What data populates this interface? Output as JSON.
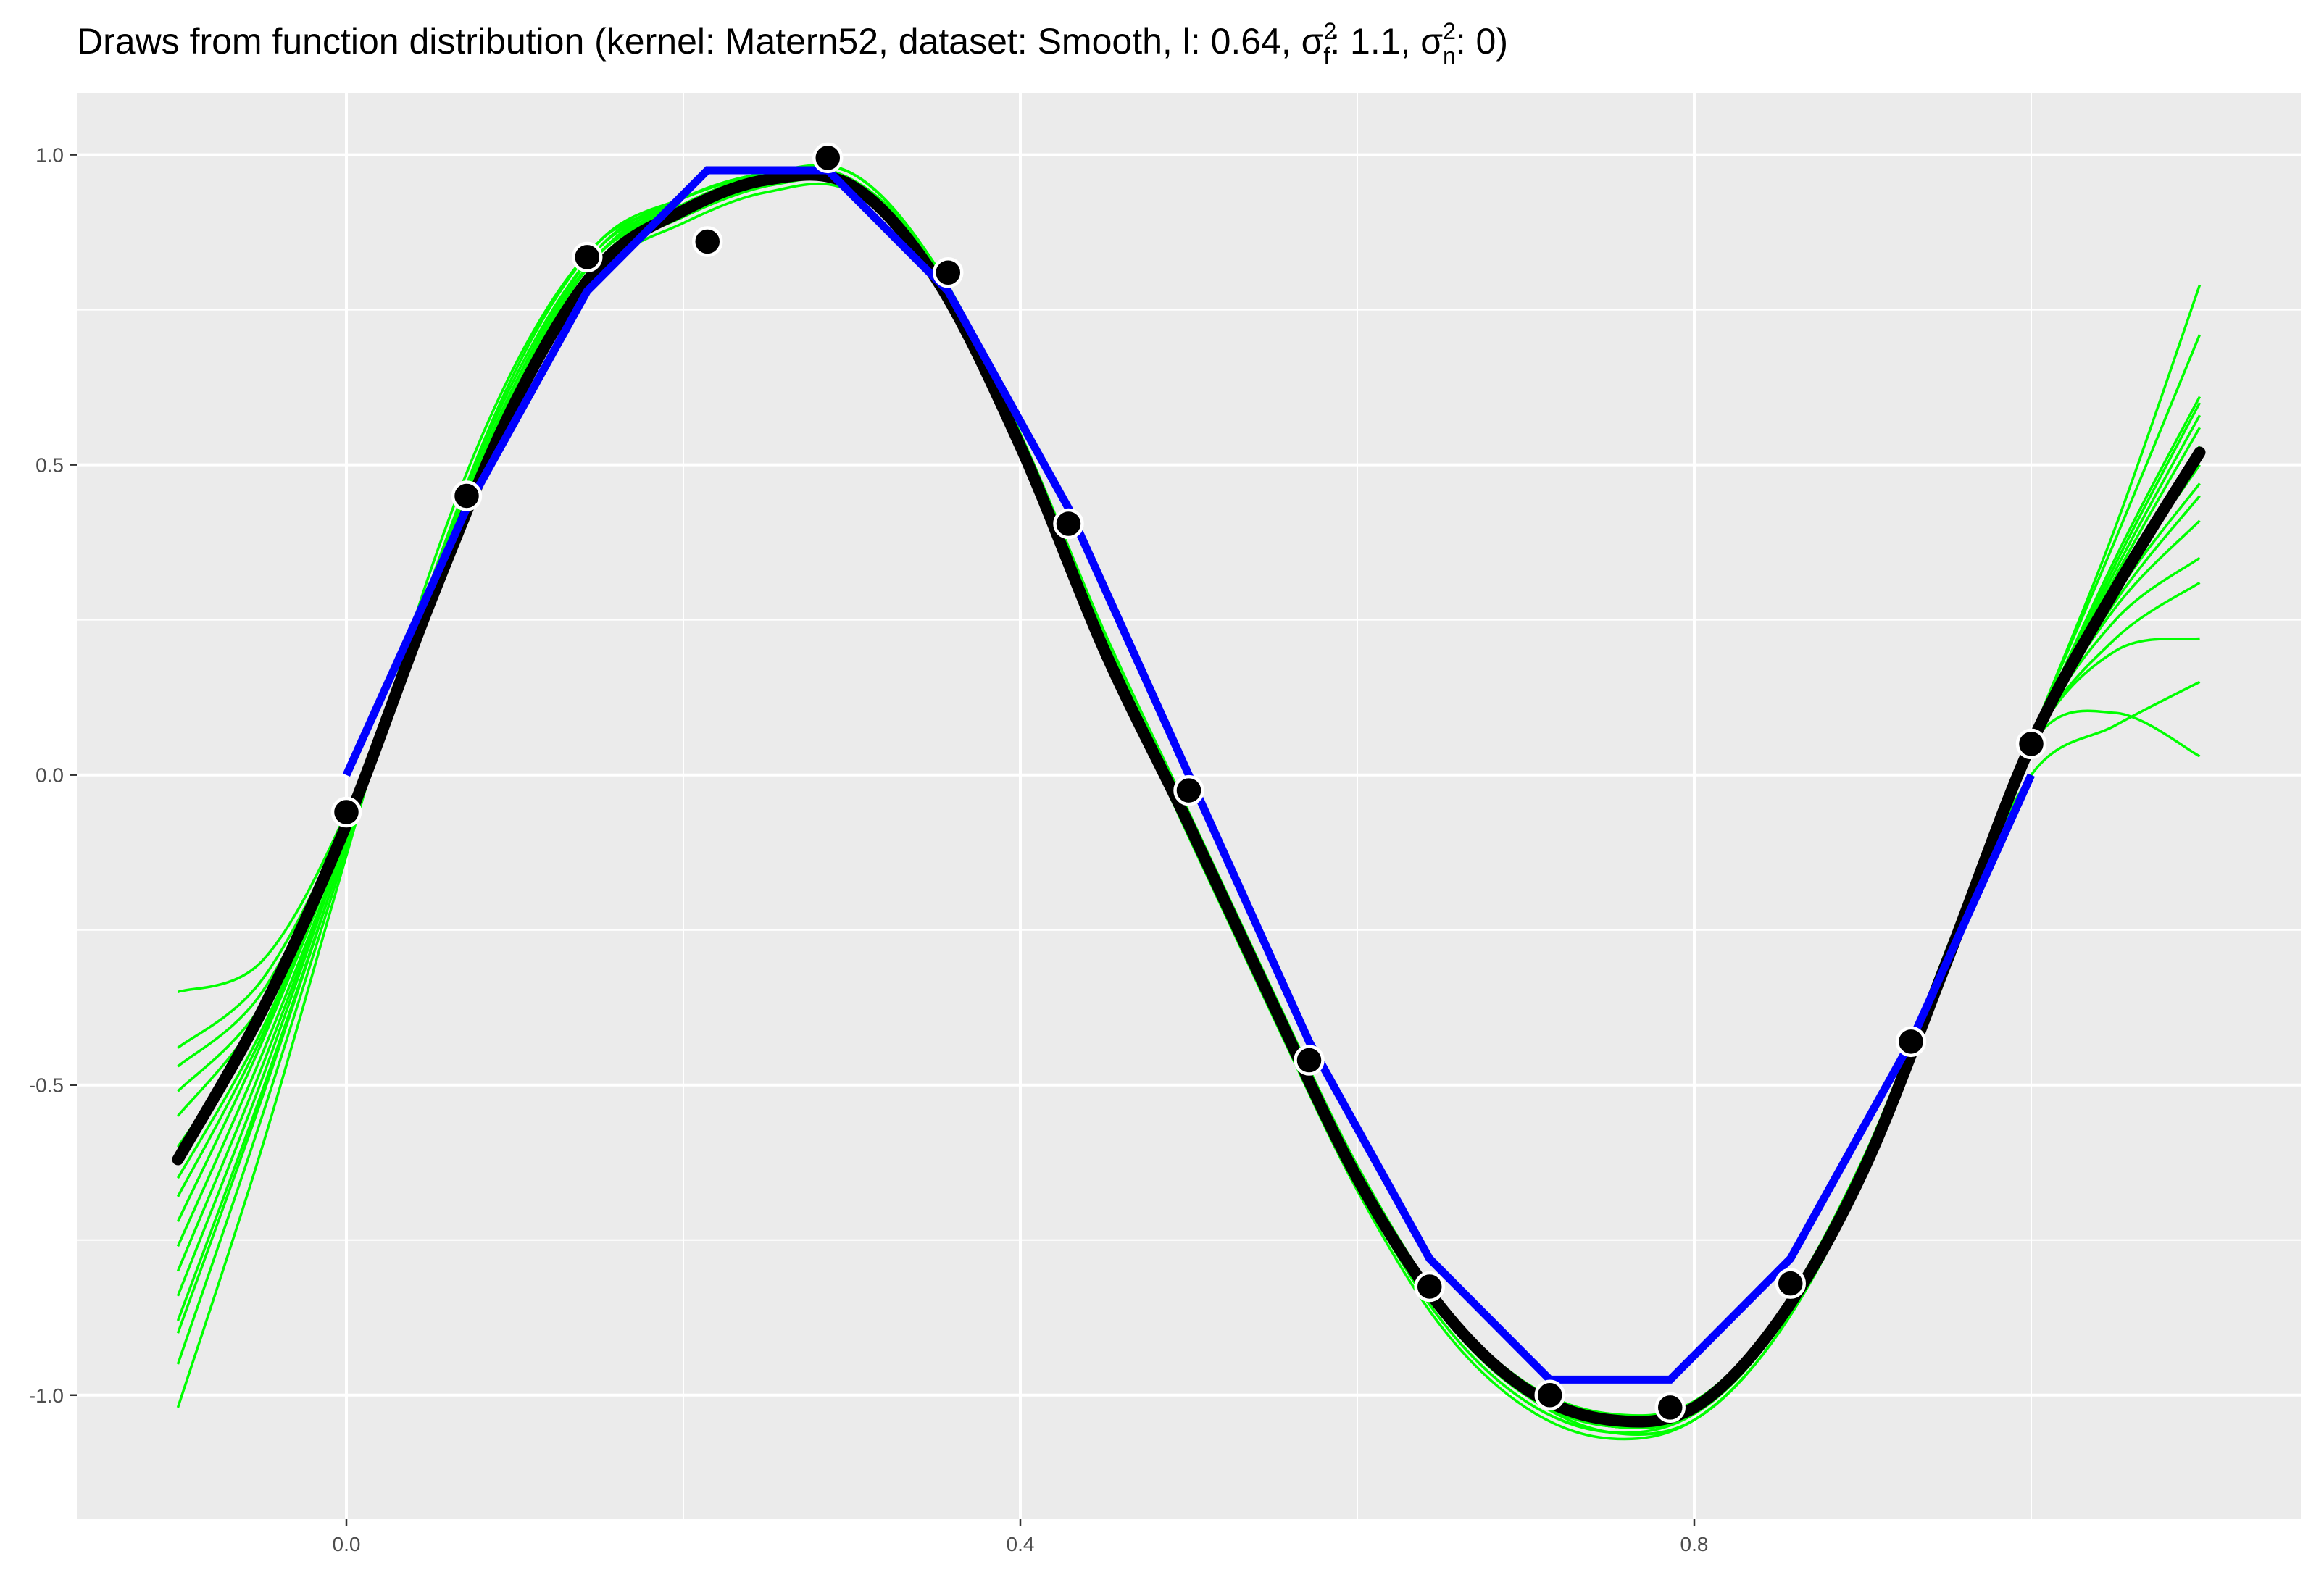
{
  "chart_data": {
    "type": "line",
    "title": {
      "main": "Draws from function distribution (kernel: Matern52, dataset: Smooth, l: 0.64, σ",
      "sup1": "2",
      "sub1": "f",
      "mid": ": 1.1, σ",
      "sup2": "2",
      "sub2": "n",
      "end": ": 0)"
    },
    "xlabel": "",
    "ylabel": "",
    "xlim": [
      -0.16,
      1.16
    ],
    "ylim": [
      -1.2,
      1.1
    ],
    "x_ticks": [
      0.0,
      0.4,
      0.8
    ],
    "x_tick_labels": [
      "0.0",
      "0.4",
      "0.8"
    ],
    "x_minor": [
      -0.2,
      0.2,
      0.6,
      1.0
    ],
    "y_ticks": [
      -1.0,
      -0.5,
      0.0,
      0.5,
      1.0
    ],
    "y_tick_labels": [
      "-1.0",
      "-0.5",
      "0.0",
      "0.5",
      "1.0"
    ],
    "y_minor": [
      -0.75,
      -0.25,
      0.25,
      0.75
    ],
    "grid": true,
    "colors": {
      "panel": "#ebebeb",
      "grid": "#ffffff",
      "draws": "#00ff00",
      "mean": "#000000",
      "interpolation": "#0000ff",
      "points": "#000000",
      "point_outline": "#ffffff"
    },
    "observations": {
      "x": [
        0.0,
        0.0714,
        0.1429,
        0.2143,
        0.2857,
        0.3571,
        0.4286,
        0.5,
        0.5714,
        0.6429,
        0.7143,
        0.7857,
        0.8571,
        0.9286,
        1.0
      ],
      "y": [
        -0.06,
        0.45,
        0.835,
        0.86,
        0.995,
        0.81,
        0.405,
        -0.025,
        -0.46,
        -0.825,
        -1.0,
        -1.02,
        -0.82,
        -0.43,
        0.05
      ]
    },
    "mean_curve": {
      "x": [
        -0.1,
        -0.05,
        0.0,
        0.05,
        0.1,
        0.15,
        0.2,
        0.25,
        0.3,
        0.35,
        0.4,
        0.45,
        0.5,
        0.55,
        0.6,
        0.65,
        0.7,
        0.75,
        0.8,
        0.85,
        0.9,
        0.95,
        1.0,
        1.05,
        1.1
      ],
      "y": [
        -0.62,
        -0.38,
        -0.08,
        0.28,
        0.6,
        0.82,
        0.91,
        0.96,
        0.95,
        0.8,
        0.53,
        0.2,
        -0.08,
        -0.37,
        -0.65,
        -0.86,
        -0.99,
        -1.04,
        -1.02,
        -0.88,
        -0.64,
        -0.3,
        0.05,
        0.3,
        0.52
      ]
    },
    "interpolation_line": {
      "x": [
        0.0,
        0.0714,
        0.1429,
        0.2143,
        0.2857,
        0.3571,
        0.4286,
        0.5,
        0.5714,
        0.6429,
        0.7143,
        0.7857,
        0.8571,
        0.9286,
        1.0
      ],
      "y": [
        0.0,
        0.43,
        0.78,
        0.975,
        0.975,
        0.78,
        0.43,
        0.0,
        -0.43,
        -0.78,
        -0.975,
        -0.975,
        -0.78,
        -0.43,
        0.0
      ]
    },
    "draws": {
      "x": [
        -0.1,
        -0.05,
        0.0,
        0.05,
        0.1,
        0.15,
        0.2,
        0.25,
        0.3,
        0.35,
        0.4,
        0.45,
        0.5,
        0.55,
        0.6,
        0.65,
        0.7,
        0.75,
        0.8,
        0.85,
        0.9,
        0.95,
        1.0,
        1.05,
        1.1
      ],
      "series": [
        [
          -0.35,
          -0.3,
          -0.06,
          0.3,
          0.62,
          0.84,
          0.92,
          0.97,
          0.96,
          0.81,
          0.54,
          0.22,
          -0.07,
          -0.36,
          -0.64,
          -0.86,
          -0.99,
          -1.04,
          -1.02,
          -0.88,
          -0.64,
          -0.3,
          0.05,
          0.1,
          0.03
        ],
        [
          -0.44,
          -0.33,
          -0.07,
          0.29,
          0.61,
          0.83,
          0.91,
          0.96,
          0.95,
          0.8,
          0.53,
          0.21,
          -0.08,
          -0.37,
          -0.65,
          -0.87,
          -1.0,
          -1.05,
          -1.02,
          -0.87,
          -0.62,
          -0.29,
          0.0,
          0.08,
          0.15
        ],
        [
          -0.47,
          -0.35,
          -0.07,
          0.28,
          0.6,
          0.82,
          0.9,
          0.95,
          0.95,
          0.8,
          0.52,
          0.2,
          -0.09,
          -0.38,
          -0.66,
          -0.88,
          -1.01,
          -1.06,
          -1.03,
          -0.89,
          -0.64,
          -0.3,
          0.05,
          0.2,
          0.22
        ],
        [
          -0.51,
          -0.37,
          -0.08,
          0.27,
          0.59,
          0.81,
          0.89,
          0.94,
          0.94,
          0.79,
          0.52,
          0.2,
          -0.1,
          -0.39,
          -0.67,
          -0.89,
          -1.02,
          -1.07,
          -1.04,
          -0.9,
          -0.65,
          -0.3,
          0.05,
          0.22,
          0.31
        ],
        [
          -0.55,
          -0.38,
          -0.08,
          0.27,
          0.6,
          0.82,
          0.9,
          0.95,
          0.96,
          0.81,
          0.54,
          0.21,
          -0.08,
          -0.37,
          -0.65,
          -0.87,
          -1.0,
          -1.05,
          -1.03,
          -0.89,
          -0.64,
          -0.3,
          0.05,
          0.25,
          0.35
        ],
        [
          -0.6,
          -0.39,
          -0.08,
          0.28,
          0.61,
          0.83,
          0.91,
          0.96,
          0.97,
          0.82,
          0.55,
          0.22,
          -0.07,
          -0.36,
          -0.64,
          -0.86,
          -0.99,
          -1.04,
          -1.02,
          -0.88,
          -0.64,
          -0.3,
          0.05,
          0.27,
          0.41
        ],
        [
          -0.65,
          -0.41,
          -0.09,
          0.27,
          0.6,
          0.82,
          0.91,
          0.96,
          0.96,
          0.81,
          0.54,
          0.21,
          -0.08,
          -0.37,
          -0.65,
          -0.87,
          -1.0,
          -1.06,
          -1.04,
          -0.9,
          -0.65,
          -0.31,
          0.05,
          0.28,
          0.45
        ],
        [
          -0.68,
          -0.42,
          -0.09,
          0.28,
          0.61,
          0.83,
          0.92,
          0.97,
          0.97,
          0.82,
          0.55,
          0.23,
          -0.06,
          -0.35,
          -0.63,
          -0.85,
          -0.98,
          -1.03,
          -1.01,
          -0.87,
          -0.63,
          -0.3,
          0.05,
          0.29,
          0.47
        ],
        [
          -0.72,
          -0.43,
          -0.09,
          0.29,
          0.62,
          0.84,
          0.93,
          0.97,
          0.96,
          0.82,
          0.54,
          0.22,
          -0.07,
          -0.36,
          -0.64,
          -0.86,
          -0.99,
          -1.04,
          -1.02,
          -0.88,
          -0.63,
          -0.29,
          0.05,
          0.3,
          0.5
        ],
        [
          -0.76,
          -0.45,
          -0.1,
          0.28,
          0.61,
          0.83,
          0.92,
          0.96,
          0.95,
          0.81,
          0.53,
          0.21,
          -0.08,
          -0.37,
          -0.65,
          -0.87,
          -1.0,
          -1.05,
          -1.03,
          -0.89,
          -0.64,
          -0.3,
          0.05,
          0.31,
          0.53
        ],
        [
          -0.8,
          -0.47,
          -0.1,
          0.29,
          0.62,
          0.84,
          0.92,
          0.96,
          0.95,
          0.8,
          0.53,
          0.2,
          -0.09,
          -0.38,
          -0.66,
          -0.88,
          -1.01,
          -1.06,
          -1.04,
          -0.9,
          -0.65,
          -0.3,
          0.05,
          0.32,
          0.56
        ],
        [
          -0.84,
          -0.49,
          -0.1,
          0.3,
          0.63,
          0.85,
          0.93,
          0.97,
          0.96,
          0.81,
          0.54,
          0.21,
          -0.08,
          -0.37,
          -0.65,
          -0.87,
          -1.0,
          -1.05,
          -1.03,
          -0.89,
          -0.64,
          -0.3,
          0.05,
          0.33,
          0.58
        ],
        [
          -0.88,
          -0.51,
          -0.11,
          0.31,
          0.64,
          0.85,
          0.92,
          0.96,
          0.96,
          0.82,
          0.55,
          0.22,
          -0.07,
          -0.36,
          -0.64,
          -0.86,
          -0.99,
          -1.04,
          -1.02,
          -0.88,
          -0.63,
          -0.29,
          0.05,
          0.34,
          0.6
        ],
        [
          -0.9,
          -0.52,
          -0.11,
          0.3,
          0.63,
          0.84,
          0.91,
          0.95,
          0.95,
          0.81,
          0.54,
          0.21,
          -0.08,
          -0.37,
          -0.65,
          -0.87,
          -1.0,
          -1.05,
          -1.03,
          -0.89,
          -0.64,
          -0.3,
          0.05,
          0.35,
          0.61
        ],
        [
          -0.95,
          -0.55,
          -0.12,
          0.31,
          0.65,
          0.86,
          0.93,
          0.97,
          0.97,
          0.82,
          0.55,
          0.22,
          -0.07,
          -0.36,
          -0.64,
          -0.86,
          -0.99,
          -1.04,
          -1.02,
          -0.88,
          -0.63,
          -0.28,
          0.06,
          0.38,
          0.71
        ],
        [
          -1.02,
          -0.6,
          -0.13,
          0.33,
          0.66,
          0.86,
          0.92,
          0.96,
          0.96,
          0.81,
          0.54,
          0.21,
          -0.08,
          -0.37,
          -0.65,
          -0.87,
          -1.0,
          -1.05,
          -1.03,
          -0.89,
          -0.63,
          -0.28,
          0.06,
          0.4,
          0.79
        ]
      ]
    }
  }
}
